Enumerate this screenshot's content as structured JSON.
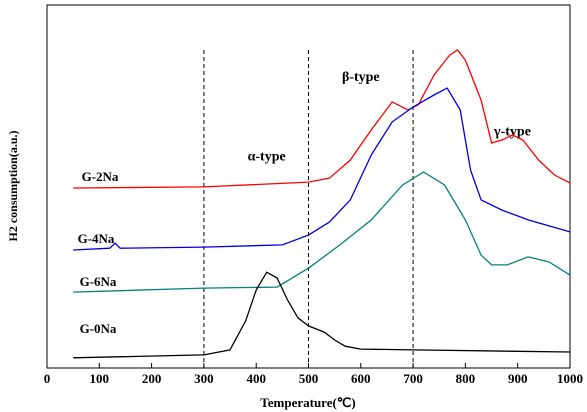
{
  "chart_data": {
    "type": "line",
    "xlabel": "Temperature(℃)",
    "ylabel": "H2 consumption(a.u.)",
    "xlim": [
      0,
      1000
    ],
    "xticks": [
      0,
      100,
      200,
      300,
      400,
      500,
      600,
      700,
      800,
      900,
      1000
    ],
    "ylim": [
      0,
      100
    ],
    "vlines": [
      300,
      500,
      700
    ],
    "annotations": [
      {
        "text": "α-type",
        "x": 420,
        "y": 58
      },
      {
        "text": "β-type",
        "x": 600,
        "y": 80
      },
      {
        "text": "γ-type",
        "x": 890,
        "y": 65
      }
    ],
    "series": [
      {
        "name": "G-2Na",
        "color": "#ff0000",
        "x": [
          50,
          300,
          500,
          540,
          580,
          620,
          660,
          690,
          710,
          740,
          770,
          785,
          800,
          830,
          850,
          870,
          890,
          910,
          940,
          970,
          1000
        ],
        "values": [
          49.6,
          49.9,
          51.2,
          52.3,
          57.3,
          65.6,
          73.3,
          71.1,
          72.5,
          80.7,
          86.2,
          87.6,
          84.8,
          73.8,
          62,
          62.8,
          64.2,
          62.8,
          57.3,
          53.2,
          51
        ]
      },
      {
        "name": "G-4Na",
        "color": "#0000dd",
        "x": [
          50,
          120,
          130,
          140,
          300,
          450,
          500,
          540,
          580,
          620,
          660,
          700,
          740,
          765,
          790,
          810,
          830,
          870,
          920,
          1000
        ],
        "values": [
          32.5,
          33,
          34.4,
          33,
          33.3,
          33.9,
          36.6,
          40.2,
          46.3,
          58.7,
          67.8,
          71.9,
          75.2,
          77.1,
          71.1,
          54.5,
          46.3,
          43.5,
          40.8,
          37.5
        ]
      },
      {
        "name": "G-6Na",
        "color": "#008080",
        "x": [
          50,
          300,
          440,
          500,
          560,
          620,
          680,
          720,
          760,
          800,
          830,
          850,
          880,
          920,
          960,
          1000
        ],
        "values": [
          20.9,
          22,
          22.3,
          27.5,
          33.9,
          40.8,
          50.4,
          54,
          50.4,
          40.8,
          31.1,
          28.4,
          28.4,
          30.6,
          29.2,
          25.6
        ]
      },
      {
        "name": "G-0Na",
        "color": "#000000",
        "x": [
          50,
          300,
          350,
          380,
          400,
          420,
          440,
          460,
          480,
          500,
          530,
          550,
          570,
          600,
          700,
          1000
        ],
        "values": [
          2.8,
          3.6,
          5,
          13,
          21.5,
          26.4,
          24.8,
          18.7,
          13.8,
          11.6,
          9.9,
          7.7,
          6,
          5.2,
          5,
          4.4
        ]
      }
    ]
  }
}
